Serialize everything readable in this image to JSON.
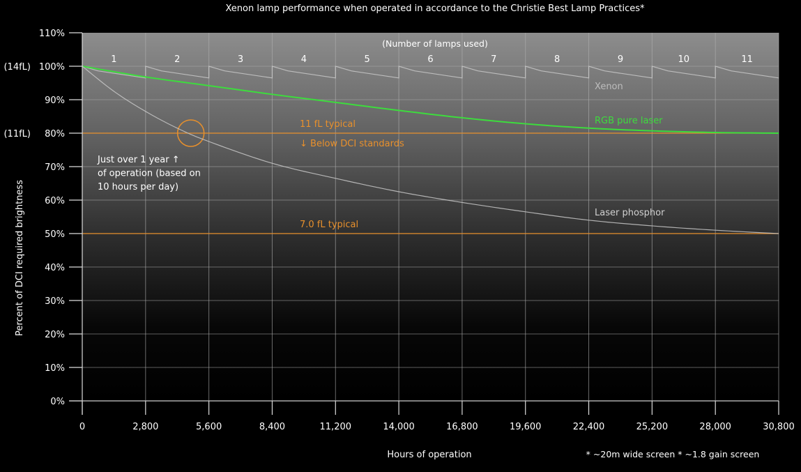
{
  "chart_data": {
    "type": "line",
    "title": "Xenon lamp performance when operated in accordance to the Christie Best Lamp Practices*",
    "xlabel": "Hours of operation",
    "ylabel": "Percent of DCI required brightness",
    "footnote": "* ~20m wide screen * ~1.8 gain screen",
    "xlim": [
      0,
      30800
    ],
    "ylim": [
      0,
      110
    ],
    "grid": true,
    "x_ticks": [
      0,
      2800,
      5600,
      8400,
      11200,
      14000,
      16800,
      19600,
      22400,
      25200,
      28000,
      30800
    ],
    "x_tick_labels": [
      "0",
      "2,800",
      "5,600",
      "8,400",
      "11,200",
      "14,000",
      "16,800",
      "19,600",
      "22,400",
      "25,200",
      "28,000",
      "30,800"
    ],
    "y_ticks": [
      0,
      10,
      20,
      30,
      40,
      50,
      60,
      70,
      80,
      90,
      100,
      110
    ],
    "y_tick_labels": [
      "0%",
      "10%",
      "20%",
      "30%",
      "40%",
      "50%",
      "60%",
      "70%",
      "80%",
      "90%",
      "100%",
      "110%"
    ],
    "secondary_y_labels": [
      {
        "y": 100,
        "label": "(14fL)"
      },
      {
        "y": 80,
        "label": "(11fL)"
      }
    ],
    "lamp_header": "(Number of lamps used)",
    "lamp_numbers": [
      "1",
      "2",
      "3",
      "4",
      "5",
      "6",
      "7",
      "8",
      "9",
      "10",
      "11"
    ],
    "lamp_life_hours": 2800,
    "series": [
      {
        "name": "Xenon",
        "color": "#c8c8c8",
        "per_lamp_profile": {
          "hours": [
            0,
            700,
            2800
          ],
          "values": [
            100,
            98.6,
            96.5
          ]
        }
      },
      {
        "name": "RGB pure laser",
        "color": "#3ddc3d",
        "x": [
          0,
          2800,
          5600,
          8400,
          11200,
          14000,
          16800,
          19600,
          22400,
          25200,
          28000,
          30800
        ],
        "values": [
          100,
          96.8,
          94.2,
          91.6,
          89.2,
          86.8,
          84.6,
          82.8,
          81.5,
          80.7,
          80.2,
          80
        ]
      },
      {
        "name": "Laser phosphor",
        "color": "#c8c8c8",
        "x": [
          0,
          1400,
          2800,
          4200,
          5600,
          8400,
          11200,
          14000,
          16800,
          19600,
          22400,
          25200,
          28000,
          30800
        ],
        "values": [
          100,
          92.5,
          86.5,
          81.5,
          77.5,
          71,
          66.5,
          62.5,
          59.3,
          56.5,
          54,
          52.3,
          51,
          50
        ]
      }
    ],
    "reference_lines": [
      {
        "y": 80,
        "label": "11 fL typical",
        "sublabel": "↓ Below DCI standards",
        "color": "#e8902c"
      },
      {
        "y": 50,
        "label": "7.0 fL typical",
        "color": "#e8902c"
      }
    ],
    "annotations": [
      {
        "type": "circle",
        "x": 4800,
        "y": 80,
        "color": "#e8902c"
      },
      {
        "type": "text",
        "lines": [
          "Just over 1 year ↑",
          "of operation (based on",
          "10 hours per day)"
        ],
        "color": "#ffffff"
      }
    ]
  }
}
